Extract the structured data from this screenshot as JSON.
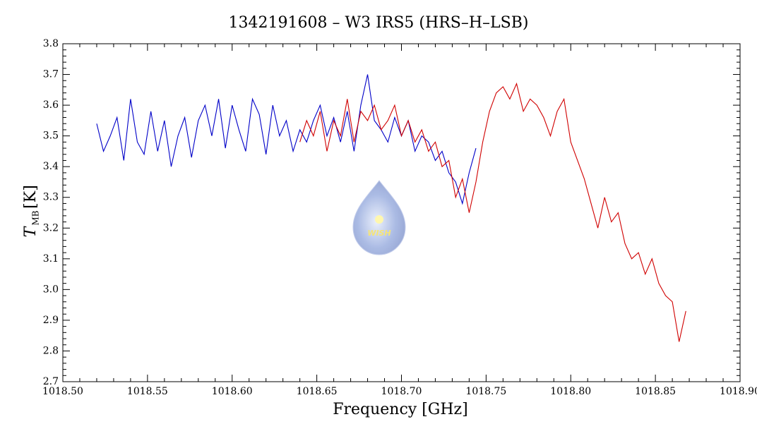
{
  "chart_data": {
    "type": "line",
    "title": "1342191608 – W3 IRS5 (HRS–H–LSB)",
    "xlabel": "Frequency [GHz]",
    "ylabel_symbol": "T",
    "ylabel_subscript": "MB",
    "ylabel_unit": "[K]",
    "logo_text": "WISH",
    "xlim": [
      1018.5,
      1018.9
    ],
    "ylim": [
      2.7,
      3.8
    ],
    "xticks": [
      {
        "value": 1018.5,
        "label": "1018.50"
      },
      {
        "value": 1018.55,
        "label": "1018.55"
      },
      {
        "value": 1018.6,
        "label": "1018.60"
      },
      {
        "value": 1018.65,
        "label": "1018.65"
      },
      {
        "value": 1018.7,
        "label": "1018.70"
      },
      {
        "value": 1018.75,
        "label": "1018.75"
      },
      {
        "value": 1018.8,
        "label": "1018.80"
      },
      {
        "value": 1018.85,
        "label": "1018.85"
      },
      {
        "value": 1018.9,
        "label": "1018.90"
      }
    ],
    "yticks": [
      {
        "value": 2.7,
        "label": "2.7"
      },
      2.8,
      2.9,
      {
        "value": 3.0,
        "label": "3.0"
      },
      3.1,
      3.2,
      3.3,
      3.4,
      3.5,
      3.6,
      3.7,
      3.8
    ],
    "series": [
      {
        "color": "#0000c8",
        "x": [
          1018.52,
          1018.524,
          1018.528,
          1018.532,
          1018.536,
          1018.54,
          1018.544,
          1018.548,
          1018.552,
          1018.556,
          1018.56,
          1018.564,
          1018.568,
          1018.572,
          1018.576,
          1018.58,
          1018.584,
          1018.588,
          1018.592,
          1018.596,
          1018.6,
          1018.604,
          1018.608,
          1018.612,
          1018.616,
          1018.62,
          1018.624,
          1018.628,
          1018.632,
          1018.636,
          1018.64,
          1018.644,
          1018.648,
          1018.652,
          1018.656,
          1018.66,
          1018.664,
          1018.668,
          1018.672,
          1018.676,
          1018.68,
          1018.684,
          1018.688,
          1018.692,
          1018.696,
          1018.7,
          1018.704,
          1018.708,
          1018.712,
          1018.716,
          1018.72,
          1018.724,
          1018.728,
          1018.732,
          1018.736,
          1018.74,
          1018.744
        ],
        "values": [
          3.54,
          3.45,
          3.5,
          3.56,
          3.42,
          3.62,
          3.48,
          3.44,
          3.58,
          3.45,
          3.55,
          3.4,
          3.5,
          3.56,
          3.43,
          3.55,
          3.6,
          3.5,
          3.62,
          3.46,
          3.6,
          3.52,
          3.45,
          3.62,
          3.57,
          3.44,
          3.6,
          3.5,
          3.55,
          3.45,
          3.52,
          3.48,
          3.55,
          3.6,
          3.5,
          3.56,
          3.48,
          3.58,
          3.45,
          3.6,
          3.7,
          3.55,
          3.52,
          3.48,
          3.56,
          3.5,
          3.55,
          3.45,
          3.5,
          3.48,
          3.42,
          3.45,
          3.38,
          3.35,
          3.28,
          3.38,
          3.46
        ]
      },
      {
        "color": "#d00000",
        "x": [
          1018.64,
          1018.644,
          1018.648,
          1018.652,
          1018.656,
          1018.66,
          1018.664,
          1018.668,
          1018.672,
          1018.676,
          1018.68,
          1018.684,
          1018.688,
          1018.692,
          1018.696,
          1018.7,
          1018.704,
          1018.708,
          1018.712,
          1018.716,
          1018.72,
          1018.724,
          1018.728,
          1018.732,
          1018.736,
          1018.74,
          1018.744,
          1018.748,
          1018.752,
          1018.756,
          1018.76,
          1018.764,
          1018.768,
          1018.772,
          1018.776,
          1018.78,
          1018.784,
          1018.788,
          1018.792,
          1018.796,
          1018.8,
          1018.804,
          1018.808,
          1018.812,
          1018.816,
          1018.82,
          1018.824,
          1018.828,
          1018.832,
          1018.836,
          1018.84,
          1018.844,
          1018.848,
          1018.852,
          1018.856,
          1018.86,
          1018.864,
          1018.868
        ],
        "values": [
          3.48,
          3.55,
          3.5,
          3.58,
          3.45,
          3.55,
          3.5,
          3.62,
          3.48,
          3.58,
          3.55,
          3.6,
          3.52,
          3.55,
          3.6,
          3.5,
          3.55,
          3.48,
          3.52,
          3.45,
          3.48,
          3.4,
          3.42,
          3.3,
          3.36,
          3.25,
          3.35,
          3.48,
          3.58,
          3.64,
          3.66,
          3.62,
          3.67,
          3.58,
          3.62,
          3.6,
          3.56,
          3.5,
          3.58,
          3.62,
          3.48,
          3.42,
          3.36,
          3.28,
          3.2,
          3.3,
          3.22,
          3.25,
          3.15,
          3.1,
          3.12,
          3.05,
          3.1,
          3.02,
          2.98,
          2.96,
          2.83,
          2.93
        ]
      }
    ]
  }
}
